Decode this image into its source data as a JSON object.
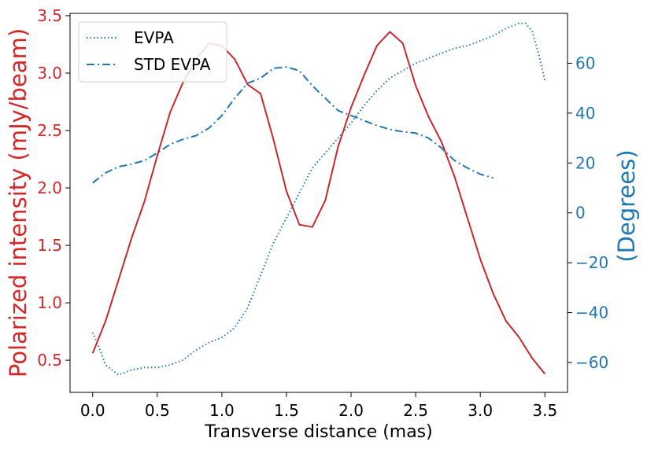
{
  "chart_data": {
    "type": "line",
    "xlabel": "Transverse distance (mas)",
    "ylabel_left": "Polarized intensity (mJy/beam)",
    "ylabel_right": "(Degrees)",
    "xlim": [
      -0.175,
      3.675
    ],
    "ylim_left": [
      0.22,
      3.52
    ],
    "ylim_right": [
      -72,
      80
    ],
    "x_ticks": [
      "0.0",
      "0.5",
      "1.0",
      "1.5",
      "2.0",
      "2.5",
      "3.0",
      "3.5"
    ],
    "y_left_ticks": [
      "0.5",
      "1.0",
      "1.5",
      "2.0",
      "2.5",
      "3.0",
      "3.5"
    ],
    "y_right_ticks": [
      "−60",
      "−40",
      "−20",
      "0",
      "20",
      "40",
      "60"
    ],
    "legend_position": "upper-left",
    "colors": {
      "left_axis": "#d62728",
      "right_axis": "#1f77b4",
      "intensity": "#c8282d",
      "evpa": "#1f77b4"
    },
    "legend": [
      "EVPA",
      "STD EVPA"
    ],
    "x_intensity": [
      0.0,
      0.1,
      0.2,
      0.3,
      0.4,
      0.5,
      0.6,
      0.7,
      0.8,
      0.9,
      1.0,
      1.1,
      1.2,
      1.3,
      1.4,
      1.5,
      1.6,
      1.7,
      1.8,
      1.9,
      2.0,
      2.1,
      2.2,
      2.3,
      2.4,
      2.5,
      2.6,
      2.7,
      2.8,
      2.9,
      3.0,
      3.1,
      3.2,
      3.3,
      3.4,
      3.5
    ],
    "intensity": [
      0.56,
      0.84,
      1.2,
      1.56,
      1.88,
      2.28,
      2.66,
      2.92,
      3.12,
      3.26,
      3.24,
      3.12,
      2.9,
      2.82,
      2.42,
      1.97,
      1.68,
      1.66,
      1.89,
      2.36,
      2.7,
      2.98,
      3.24,
      3.36,
      3.26,
      2.89,
      2.62,
      2.4,
      2.1,
      1.74,
      1.38,
      1.08,
      0.84,
      0.7,
      0.52,
      0.38
    ],
    "x_evpa": [
      0.0,
      0.05,
      0.1,
      0.15,
      0.2,
      0.25,
      0.3,
      0.4,
      0.5,
      0.6,
      0.7,
      0.8,
      0.9,
      1.0,
      1.1,
      1.2,
      1.3,
      1.4,
      1.5,
      1.6,
      1.7,
      1.8,
      1.9,
      2.0,
      2.1,
      2.2,
      2.3,
      2.4,
      2.5,
      2.6,
      2.7,
      2.8,
      2.9,
      3.0,
      3.1,
      3.2,
      3.3,
      3.35,
      3.4,
      3.45,
      3.5
    ],
    "evpa": [
      -48,
      -54,
      -61,
      -63,
      -65,
      -64,
      -63,
      -62,
      -62,
      -61,
      -59,
      -55,
      -52,
      -50,
      -46,
      -38,
      -25,
      -12,
      -2,
      8,
      18,
      24,
      30,
      36,
      43,
      49,
      54,
      57,
      60,
      62,
      64,
      66,
      67,
      69,
      71,
      74,
      76,
      76,
      73,
      64,
      53
    ],
    "x_std_evpa": [
      0.0,
      0.1,
      0.2,
      0.3,
      0.4,
      0.5,
      0.6,
      0.7,
      0.8,
      0.9,
      1.0,
      1.1,
      1.2,
      1.3,
      1.4,
      1.5,
      1.6,
      1.7,
      1.8,
      1.9,
      2.0,
      2.1,
      2.2,
      2.3,
      2.4,
      2.5,
      2.6,
      2.7,
      2.8,
      2.9,
      3.0,
      3.1
    ],
    "std_evpa": [
      12,
      16,
      18.5,
      19.5,
      21,
      24,
      27.5,
      29.5,
      31,
      34,
      39,
      46,
      52,
      54,
      58,
      58.5,
      57,
      51,
      46,
      41,
      39,
      37,
      35,
      33.5,
      32.5,
      32,
      30,
      26,
      21,
      18,
      15.5,
      14
    ]
  }
}
